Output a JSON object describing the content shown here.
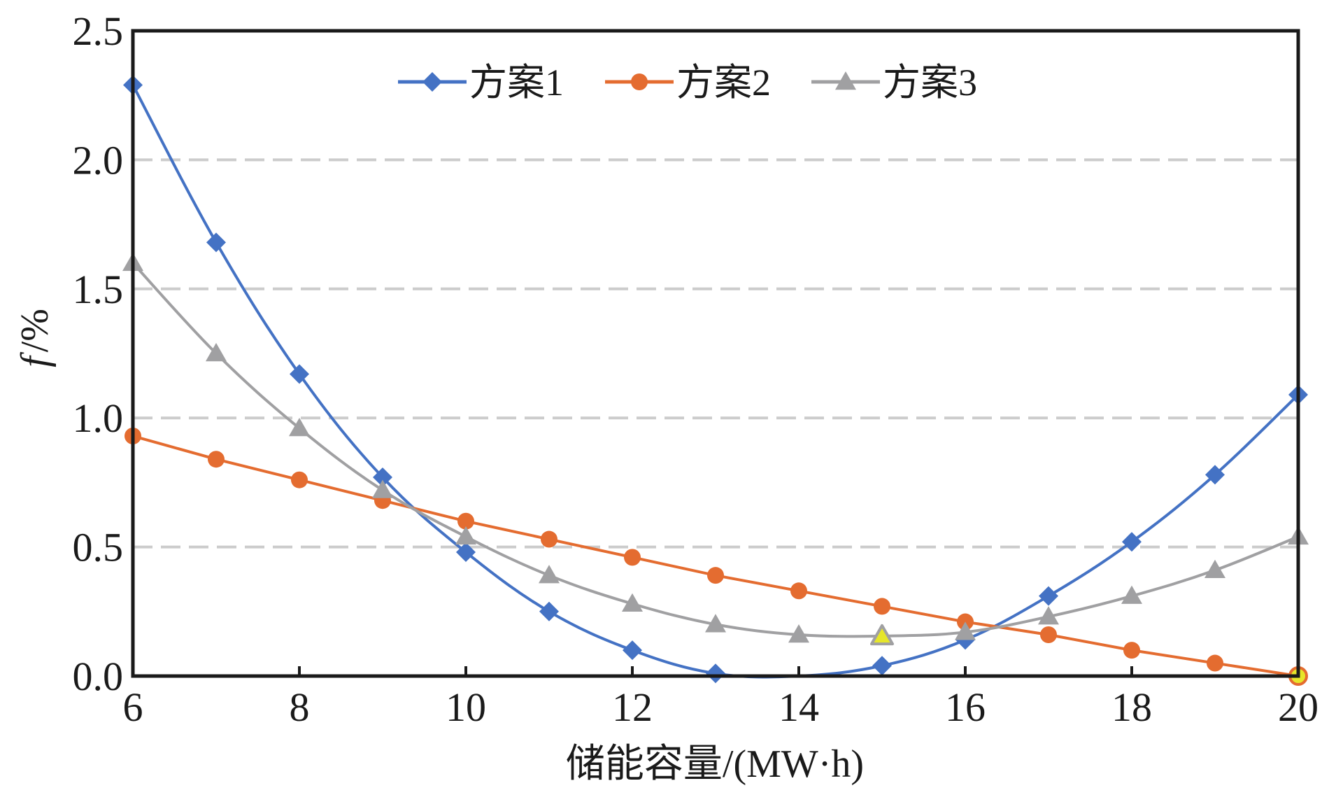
{
  "chart_data": {
    "type": "line",
    "title": "",
    "xlabel": "储能容量/(MW·h)",
    "ylabel": {
      "var": "f",
      "unit": "/%"
    },
    "xlim": [
      6,
      20
    ],
    "ylim": [
      0,
      2.5
    ],
    "xticks": [
      6,
      8,
      10,
      12,
      14,
      16,
      18,
      20
    ],
    "xtick_labels": [
      "6",
      "8",
      "10",
      "12",
      "14",
      "16",
      "18",
      "20"
    ],
    "yticks": [
      0,
      0.5,
      1.0,
      1.5,
      2.0,
      2.5
    ],
    "ytick_labels": [
      "0.0",
      "0.5",
      "1.0",
      "1.5",
      "2.0",
      "2.5"
    ],
    "grid": {
      "y": true,
      "x": false,
      "style": "dashed"
    },
    "legend_position": "top-center",
    "x": [
      6,
      7,
      8,
      9,
      10,
      11,
      12,
      13,
      14,
      15,
      16,
      17,
      18,
      19,
      20
    ],
    "series": [
      {
        "name": "方案1",
        "color": "#4472c4",
        "marker": "diamond",
        "smooth": true,
        "values": [
          2.29,
          1.68,
          1.17,
          0.77,
          0.48,
          0.25,
          0.1,
          0.01,
          0.0,
          0.04,
          0.14,
          0.31,
          0.52,
          0.78,
          1.09
        ],
        "hidden_markers": [
          8
        ]
      },
      {
        "name": "方案2",
        "color": "#e46c30",
        "marker": "circle",
        "smooth": false,
        "values": [
          0.93,
          0.84,
          0.76,
          0.68,
          0.6,
          0.53,
          0.46,
          0.39,
          0.33,
          0.27,
          0.21,
          0.16,
          0.1,
          0.05,
          0.0
        ],
        "highlight": {
          "index": 14,
          "fill": "#e6e62a"
        }
      },
      {
        "name": "方案3",
        "color": "#a0a0a2",
        "marker": "triangle",
        "smooth": true,
        "values": [
          1.6,
          1.25,
          0.96,
          0.72,
          0.54,
          0.39,
          0.28,
          0.2,
          0.16,
          0.155,
          0.17,
          0.23,
          0.31,
          0.41,
          0.54
        ],
        "highlight": {
          "index": 9,
          "fill": "#e6e62a"
        }
      }
    ]
  },
  "colors": {
    "axis": "#1a1a1a",
    "grid": "#cccccc",
    "highlight": "#e6e62a"
  }
}
